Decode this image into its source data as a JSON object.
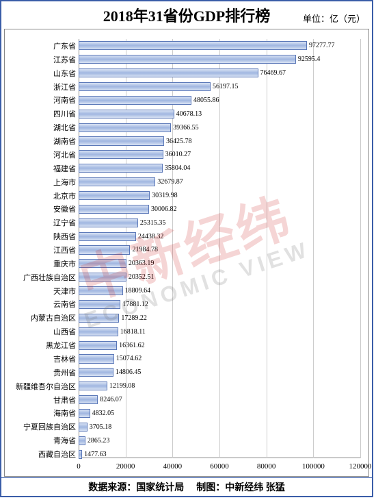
{
  "title": "2018年31省份GDP排行榜",
  "unit": "单位：亿（元）",
  "footer_source": "数据来源：国家统计局",
  "footer_credit": "制图：中新经纬 张猛",
  "watermark_zh": "中新经纬",
  "watermark_en": "ECONOMIC VIEW",
  "chart": {
    "type": "horizontal-bar",
    "x_max": 120000,
    "x_ticks": [
      0,
      20000,
      40000,
      60000,
      80000,
      100000,
      120000
    ],
    "bar_fill_gradient": [
      "#d8e2f4",
      "#a0b6e0",
      "#d8e2f4"
    ],
    "bar_border": "#5b78b8",
    "grid_color": "#cccccc",
    "axis_color": "#888888",
    "background": "#ffffff",
    "label_fontsize": 11,
    "value_fontsize": 10,
    "title_fontsize": 22,
    "data": [
      {
        "name": "广东省",
        "value": 97277.77
      },
      {
        "name": "江苏省",
        "value": 92595.4
      },
      {
        "name": "山东省",
        "value": 76469.67
      },
      {
        "name": "浙江省",
        "value": 56197.15
      },
      {
        "name": "河南省",
        "value": 48055.86
      },
      {
        "name": "四川省",
        "value": 40678.13
      },
      {
        "name": "湖北省",
        "value": 39366.55
      },
      {
        "name": "湖南省",
        "value": 36425.78
      },
      {
        "name": "河北省",
        "value": 36010.27
      },
      {
        "name": "福建省",
        "value": 35804.04
      },
      {
        "name": "上海市",
        "value": 32679.87
      },
      {
        "name": "北京市",
        "value": 30319.98
      },
      {
        "name": "安徽省",
        "value": 30006.82
      },
      {
        "name": "辽宁省",
        "value": 25315.35
      },
      {
        "name": "陕西省",
        "value": 24438.32
      },
      {
        "name": "江西省",
        "value": 21984.78
      },
      {
        "name": "重庆市",
        "value": 20363.19
      },
      {
        "name": "广西壮族自治区",
        "value": 20352.51
      },
      {
        "name": "天津市",
        "value": 18809.64
      },
      {
        "name": "云南省",
        "value": 17881.12
      },
      {
        "name": "内蒙古自治区",
        "value": 17289.22
      },
      {
        "name": "山西省",
        "value": 16818.11
      },
      {
        "name": "黑龙江省",
        "value": 16361.62
      },
      {
        "name": "吉林省",
        "value": 15074.62
      },
      {
        "name": "贵州省",
        "value": 14806.45
      },
      {
        "name": "新疆维吾尔自治区",
        "value": 12199.08
      },
      {
        "name": "甘肃省",
        "value": 8246.07
      },
      {
        "name": "海南省",
        "value": 4832.05
      },
      {
        "name": "宁夏回族自治区",
        "value": 3705.18
      },
      {
        "name": "青海省",
        "value": 2865.23
      },
      {
        "name": "西藏自治区",
        "value": 1477.63
      }
    ]
  }
}
